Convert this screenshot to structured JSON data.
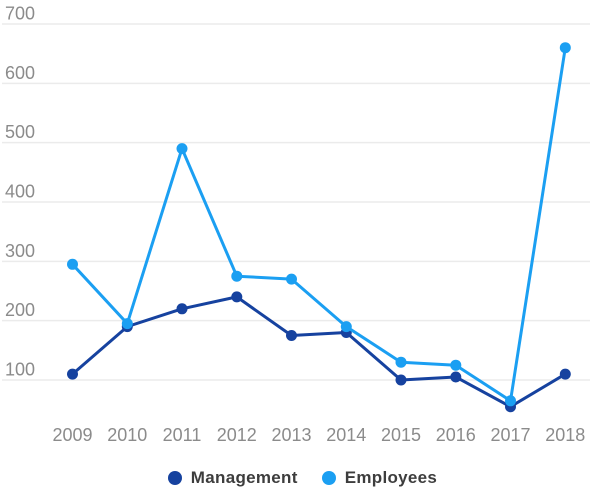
{
  "chart_data": {
    "type": "line",
    "title": "",
    "xlabel": "",
    "ylabel": "",
    "categories": [
      "2009",
      "2010",
      "2011",
      "2012",
      "2013",
      "2014",
      "2015",
      "2016",
      "2017",
      "2018"
    ],
    "series": [
      {
        "name": "Management",
        "color": "#16429f",
        "values": [
          110,
          190,
          220,
          240,
          175,
          180,
          100,
          105,
          55,
          110
        ]
      },
      {
        "name": "Employees",
        "color": "#1b9ff2",
        "values": [
          295,
          195,
          490,
          275,
          270,
          190,
          130,
          125,
          65,
          660
        ]
      }
    ],
    "yticks": [
      100,
      200,
      300,
      400,
      500,
      600,
      700
    ],
    "ylim": [
      40,
      700
    ],
    "grid": "horizontal-only",
    "legend_position": "bottom-center"
  },
  "style": {
    "grid_color": "#ebebeb",
    "axis_text_color": "#8b8b8b",
    "legend_text_color": "#3d3d3d",
    "background": "#ffffff"
  }
}
